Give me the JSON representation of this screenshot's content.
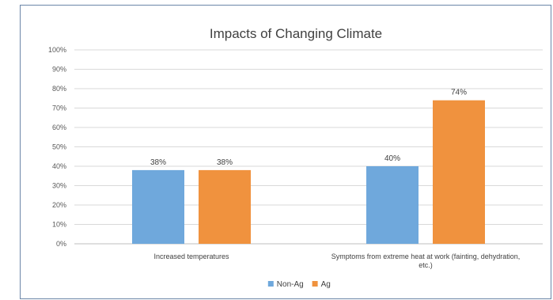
{
  "chart_data": {
    "type": "bar",
    "title": "Impacts of Changing Climate",
    "categories": [
      [
        "Increased temperatures"
      ],
      [
        "Symptoms from extreme heat at work (fainting, dehydration,",
        "etc.)"
      ]
    ],
    "series": [
      {
        "name": "Non-Ag",
        "color": "#6fa8dc",
        "values": [
          38,
          40
        ],
        "labels": [
          "38%",
          "40%"
        ]
      },
      {
        "name": "Ag",
        "color": "#f0923e",
        "values": [
          38,
          74
        ],
        "labels": [
          "38%",
          "74%"
        ]
      }
    ],
    "y_ticks": [
      "0%",
      "10%",
      "20%",
      "30%",
      "40%",
      "50%",
      "60%",
      "70%",
      "80%",
      "90%",
      "100%"
    ],
    "ylim": [
      0,
      100
    ],
    "grid": true,
    "legend_position": "bottom"
  }
}
